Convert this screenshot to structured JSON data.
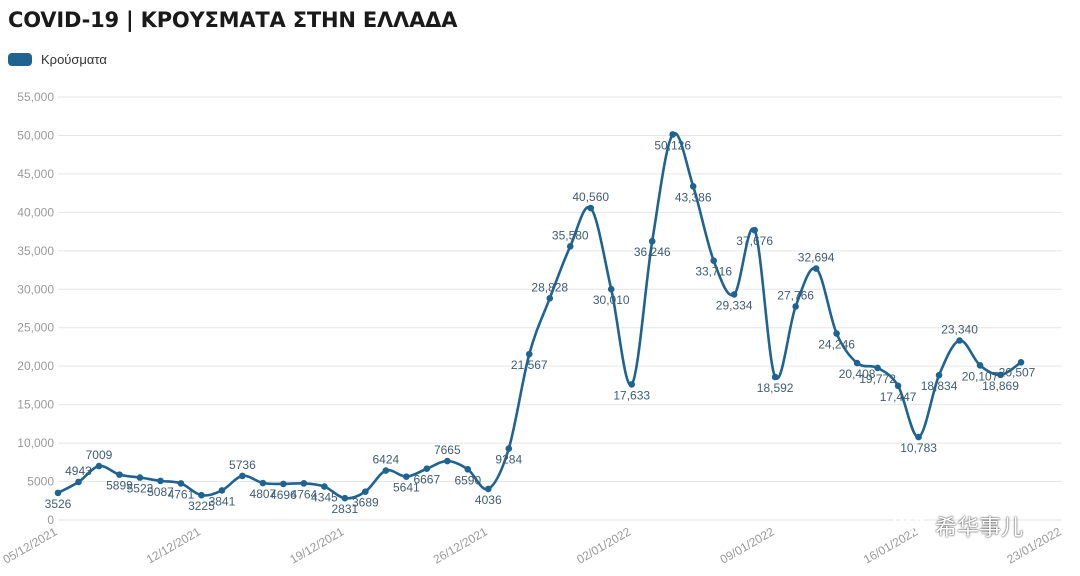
{
  "title": "COVID-19 | ΚΡΟΥΣΜΑΤΑ ΣΤΗΝ ΕΛΛΑΔΑ",
  "legend": {
    "label": "Κρούσματα"
  },
  "colors": {
    "line": "#1f6391",
    "grid": "#e6e6e6",
    "axis_text": "#9a9a9a",
    "label_text": "#3f5d75"
  },
  "watermark": {
    "text": "希华事儿"
  },
  "chart_data": {
    "type": "line",
    "title": "COVID-19 | ΚΡΟΥΣΜΑΤΑ ΣΤΗΝ ΕΛΛΑΔΑ",
    "xlabel": "",
    "ylabel": "",
    "ylim": [
      0,
      55000
    ],
    "yticks": [
      0,
      5000,
      10000,
      15000,
      20000,
      25000,
      30000,
      35000,
      40000,
      45000,
      50000,
      55000
    ],
    "ytick_labels": [
      "0",
      "5000",
      "10,000",
      "15,000",
      "20,000",
      "25,000",
      "30,000",
      "35,000",
      "40,000",
      "45,000",
      "50,000",
      "55,000"
    ],
    "xtick_labels": [
      "05/12/2021",
      "12/12/2021",
      "19/12/2021",
      "26/12/2021",
      "02/01/2022",
      "09/01/2022",
      "16/01/2022",
      "23/01/2022"
    ],
    "xtick_index": [
      0,
      7,
      14,
      21,
      28,
      35,
      42,
      49
    ],
    "grid": true,
    "legend_position": "top-left",
    "series": [
      {
        "name": "Κρούσματα",
        "values": [
          3526,
          4943,
          7009,
          5899,
          5523,
          5087,
          4761,
          3225,
          3841,
          5736,
          4807,
          4696,
          4764,
          4345,
          2831,
          3689,
          6424,
          5641,
          6667,
          7665,
          6590,
          4036,
          9284,
          21567,
          28828,
          35580,
          40560,
          30010,
          17633,
          36246,
          50126,
          43386,
          33716,
          29334,
          37676,
          18592,
          27766,
          32694,
          24246,
          20408,
          19772,
          17447,
          10783,
          18834,
          23340,
          20107,
          18869,
          20507
        ],
        "labels": [
          "3526",
          "4943",
          "7009",
          "5899",
          "5523",
          "5087",
          "4761",
          "3225",
          "3841",
          "5736",
          "4807",
          "4696",
          "4764",
          "4345",
          "2831",
          "3689",
          "6424",
          "5641",
          "6667",
          "7665",
          "6590",
          "4036",
          "9284",
          "21,567",
          "28,828",
          "35,580",
          "40,560",
          "30,010",
          "17,633",
          "36,246",
          "50,126",
          "43,386",
          "33,716",
          "29,334",
          "37,676",
          "18,592",
          "27,766",
          "32,694",
          "24,246",
          "20,408",
          "19,772",
          "17,447",
          "10,783",
          "18,834",
          "23,340",
          "20,107",
          "18,869",
          "20,507"
        ],
        "label_position": [
          "below",
          "above",
          "above",
          "below",
          "below",
          "below",
          "below",
          "below",
          "below",
          "above",
          "below",
          "below",
          "below",
          "below",
          "below",
          "below",
          "above",
          "below",
          "below",
          "above",
          "below",
          "below",
          "below",
          "below",
          "above",
          "above",
          "above",
          "below",
          "below",
          "below",
          "below",
          "below",
          "below",
          "below",
          "below",
          "below",
          "above",
          "above",
          "below",
          "below",
          "below",
          "below",
          "below",
          "below",
          "above",
          "below",
          "below",
          "right"
        ]
      }
    ]
  }
}
